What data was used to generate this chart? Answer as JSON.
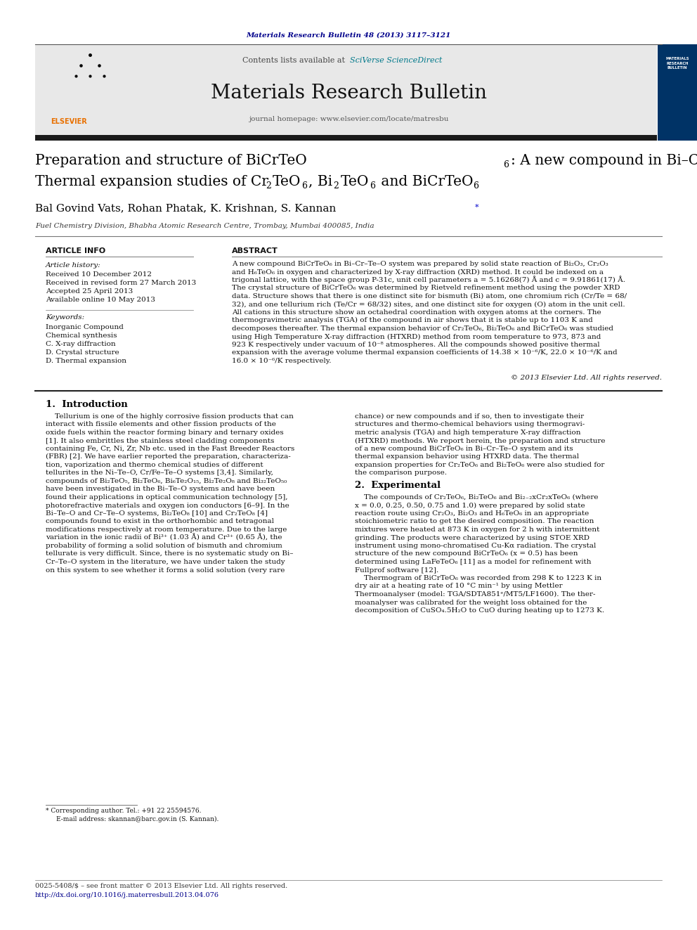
{
  "page_width": 9.92,
  "page_height": 13.23,
  "background_color": "#ffffff",
  "top_citation": "Materials Research Bulletin 48 (2013) 3117–3121",
  "journal_name": "Materials Research Bulletin",
  "contents_line": "Contents lists available at SciVerse ScienceDirect",
  "journal_homepage": "journal homepage: www.elsevier.com/locate/matresbu",
  "header_bg": "#e8e8e8",
  "header_bar_color": "#1a1a1a",
  "authors": "Bal Govind Vats, Rohan Phatak, K. Krishnan, S. Kannan",
  "affiliation": "Fuel Chemistry Division, Bhabha Atomic Research Centre, Trombay, Mumbai 400085, India",
  "article_info_header": "ARTICLE INFO",
  "abstract_header": "ABSTRACT",
  "keywords": [
    "Inorganic Compound",
    "Chemical synthesis",
    "C. X-ray diffraction",
    "D. Crystal structure",
    "D. Thermal expansion"
  ],
  "copyright_text": "© 2013 Elsevier Ltd. All rights reserved.",
  "footer_line1": "0025-5408/$ – see front matter © 2013 Elsevier Ltd. All rights reserved.",
  "footer_line2": "http://dx.doi.org/10.1016/j.materresbull.2013.04.076",
  "sciverse_color": "#00788a",
  "citation_color": "#00008b",
  "title_color": "#000000",
  "link_color": "#00008b",
  "abstract_lines": [
    "A new compound BiCrTeO₆ in Bi–Cr–Te–O system was prepared by solid state reaction of Bi₂O₃, Cr₂O₃",
    "and H₆TeO₆ in oxygen and characterized by X-ray diffraction (XRD) method. It could be indexed on a",
    "trigonal lattice, with the space group P-31c, unit cell parameters a = 5.16268(7) Å and c = 9.91861(17) Å.",
    "The crystal structure of BiCrTeO₆ was determined by Rietveld refinement method using the powder XRD",
    "data. Structure shows that there is one distinct site for bismuth (Bi) atom, one chromium rich (Cr/Te = 68/",
    "32), and one tellurium rich (Te/Cr = 68/32) sites, and one distinct site for oxygen (O) atom in the unit cell.",
    "All cations in this structure show an octahedral coordination with oxygen atoms at the corners. The",
    "thermogravimetric analysis (TGA) of the compound in air shows that it is stable up to 1103 K and",
    "decomposes thereafter. The thermal expansion behavior of Cr₂TeO₆, Bi₂TeO₆ and BiCrTeO₆ was studied",
    "using High Temperature X-ray diffraction (HTXRD) method from room temperature to 973, 873 and",
    "923 K respectively under vacuum of 10⁻⁸ atmospheres. All the compounds showed positive thermal",
    "expansion with the average volume thermal expansion coefficients of 14.38 × 10⁻⁶/K, 22.0 × 10⁻⁶/K and",
    "16.0 × 10⁻⁶/K respectively."
  ],
  "intro_lines": [
    "    Tellurium is one of the highly corrosive fission products that can",
    "interact with fissile elements and other fission products of the",
    "oxide fuels within the reactor forming binary and ternary oxides",
    "[1]. It also embrittles the stainless steel cladding components",
    "containing Fe, Cr, Ni, Zr, Nb etc. used in the Fast Breeder Reactors",
    "(FBR) [2]. We have earlier reported the preparation, characteriza-",
    "tion, vaporization and thermo chemical studies of different",
    "tellurites in the Ni–Te–O, Cr/Fe–Te–O systems [3,4]. Similarly,",
    "compounds of Bi₂TeO₅, Bi₂TeO₆, Bi₆Te₂O₁₅, Bi₂Te₂O₈ and Bi₃₂TeO₅₀",
    "have been investigated in the Bi–Te–O systems and have been",
    "found their applications in optical communication technology [5],",
    "photorefractive materials and oxygen ion conductors [6–9]. In the",
    "Bi–Te–O and Cr–Te–O systems, Bi₂TeO₈ [10] and Cr₂TeO₈ [4]",
    "compounds found to exist in the orthorhombic and tetragonal",
    "modifications respectively at room temperature. Due to the large",
    "variation in the ionic radii of Bi³⁺ (1.03 Å) and Cr³⁺ (0.65 Å), the",
    "probability of forming a solid solution of bismuth and chromium",
    "tellurate is very difficult. Since, there is no systematic study on Bi–",
    "Cr–Te–O system in the literature, we have under taken the study",
    "on this system to see whether it forms a solid solution (very rare"
  ],
  "right_intro_lines": [
    "chance) or new compounds and if so, then to investigate their",
    "structures and thermo-chemical behaviors using thermogravi-",
    "metric analysis (TGA) and high temperature X-ray diffraction",
    "(HTXRD) methods. We report herein, the preparation and structure",
    "of a new compound BiCrTeO₆ in Bi–Cr–Te–O system and its",
    "thermal expansion behavior using HTXRD data. The thermal",
    "expansion properties for Cr₂TeO₆ and Bi₂TeO₆ were also studied for",
    "the comparison purpose."
  ],
  "exp_lines": [
    "    The compounds of Cr₂TeO₆, Bi₂TeO₆ and Bi₂₋₂xCr₂xTeO₆ (where",
    "x = 0.0, 0.25, 0.50, 0.75 and 1.0) were prepared by solid state",
    "reaction route using Cr₂O₃, Bi₂O₃ and H₆TeO₆ in an appropriate",
    "stoichiometric ratio to get the desired composition. The reaction",
    "mixtures were heated at 873 K in oxygen for 2 h with intermittent",
    "grinding. The products were characterized by using STOE XRD",
    "instrument using mono-chromatised Cu-Kα radiation. The crystal",
    "structure of the new compound BiCrTeO₆ (x = 0.5) has been",
    "determined using LaFeTeO₆ [11] as a model for refinement with",
    "Fullprof software [12].",
    "    Thermogram of BiCrTeO₆ was recorded from 298 K to 1223 K in",
    "dry air at a heating rate of 10 °C min⁻¹ by using Mettler",
    "Thermoanalyser (model: TGA/SDTA851ᵉ/MT5/LF1600). The ther-",
    "moanalyser was calibrated for the weight loss obtained for the",
    "decomposition of CuSO₄.5H₂O to CuO during heating up to 1273 K."
  ]
}
